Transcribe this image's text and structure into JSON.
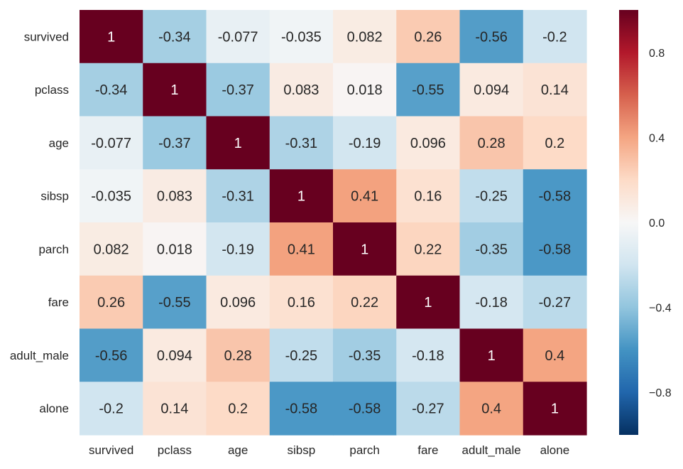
{
  "chart_data": {
    "type": "heatmap",
    "title": "",
    "xlabel": "",
    "ylabel": "",
    "rows": [
      "survived",
      "pclass",
      "age",
      "sibsp",
      "parch",
      "fare",
      "adult_male",
      "alone"
    ],
    "columns": [
      "survived",
      "pclass",
      "age",
      "sibsp",
      "parch",
      "fare",
      "adult_male",
      "alone"
    ],
    "values": [
      [
        1,
        -0.34,
        -0.077,
        -0.035,
        0.082,
        0.26,
        -0.56,
        -0.2
      ],
      [
        -0.34,
        1,
        -0.37,
        0.083,
        0.018,
        -0.55,
        0.094,
        0.14
      ],
      [
        -0.077,
        -0.37,
        1,
        -0.31,
        -0.19,
        0.096,
        0.28,
        0.2
      ],
      [
        -0.035,
        0.083,
        -0.31,
        1,
        0.41,
        0.16,
        -0.25,
        -0.58
      ],
      [
        0.082,
        0.018,
        -0.19,
        0.41,
        1,
        0.22,
        -0.35,
        -0.58
      ],
      [
        0.26,
        -0.55,
        0.096,
        0.16,
        0.22,
        1,
        -0.18,
        -0.27
      ],
      [
        -0.56,
        0.094,
        0.28,
        -0.25,
        -0.35,
        -0.18,
        1,
        0.4
      ],
      [
        -0.2,
        0.14,
        0.2,
        -0.58,
        -0.58,
        -0.27,
        0.4,
        1
      ]
    ],
    "value_labels": [
      [
        "1",
        "-0.34",
        "-0.077",
        "-0.035",
        "0.082",
        "0.26",
        "-0.56",
        "-0.2"
      ],
      [
        "-0.34",
        "1",
        "-0.37",
        "0.083",
        "0.018",
        "-0.55",
        "0.094",
        "0.14"
      ],
      [
        "-0.077",
        "-0.37",
        "1",
        "-0.31",
        "-0.19",
        "0.096",
        "0.28",
        "0.2"
      ],
      [
        "-0.035",
        "0.083",
        "-0.31",
        "1",
        "0.41",
        "0.16",
        "-0.25",
        "-0.58"
      ],
      [
        "0.082",
        "0.018",
        "-0.19",
        "0.41",
        "1",
        "0.22",
        "-0.35",
        "-0.58"
      ],
      [
        "0.26",
        "-0.55",
        "0.096",
        "0.16",
        "0.22",
        "1",
        "-0.18",
        "-0.27"
      ],
      [
        "-0.56",
        "0.094",
        "0.28",
        "-0.25",
        "-0.35",
        "-0.18",
        "1",
        "0.4"
      ],
      [
        "-0.2",
        "0.14",
        "0.2",
        "-0.58",
        "-0.58",
        "-0.27",
        "0.4",
        "1"
      ]
    ],
    "colormap": "RdBu_r",
    "vmin": -1,
    "vmax": 1,
    "colorbar": {
      "ticks": [
        0.8,
        0.4,
        0.0,
        -0.4,
        -0.8
      ],
      "tick_labels": [
        "0.8",
        "0.4",
        "0.0",
        "−0.4",
        "−0.8"
      ],
      "position": "right"
    },
    "colors": {
      "positive_max": "#67001f",
      "negative_max": "#053061",
      "neutral": "#f7f7f7"
    },
    "grid": false
  }
}
